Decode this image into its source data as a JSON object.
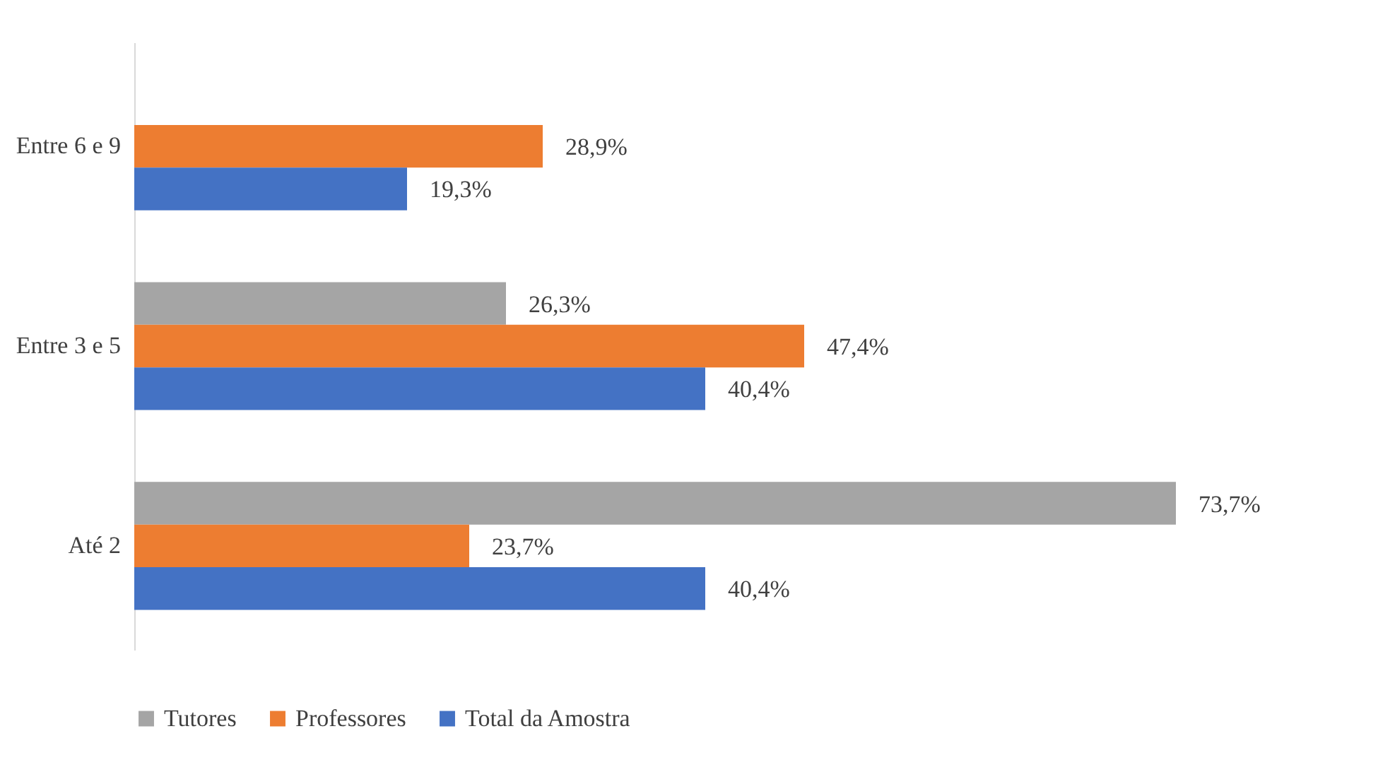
{
  "chart_data": {
    "type": "bar",
    "orientation": "horizontal",
    "categories": [
      "Entre 6 e 9",
      "Entre 3 e 5",
      "Até 2"
    ],
    "series": [
      {
        "name": "Tutores",
        "color": "#a5a5a5",
        "values": [
          null,
          26.3,
          73.7
        ],
        "value_labels": [
          null,
          "26,3%",
          "73,7%"
        ]
      },
      {
        "name": "Professores",
        "color": "#ed7d31",
        "values": [
          28.9,
          47.4,
          23.7
        ],
        "value_labels": [
          "28,9%",
          "47,4%",
          "23,7%"
        ]
      },
      {
        "name": "Total da Amostra",
        "color": "#4472c4",
        "values": [
          19.3,
          40.4,
          40.4
        ],
        "value_labels": [
          "19,3%",
          "40,4%",
          "40,4%"
        ]
      }
    ],
    "legend": "bottom"
  }
}
